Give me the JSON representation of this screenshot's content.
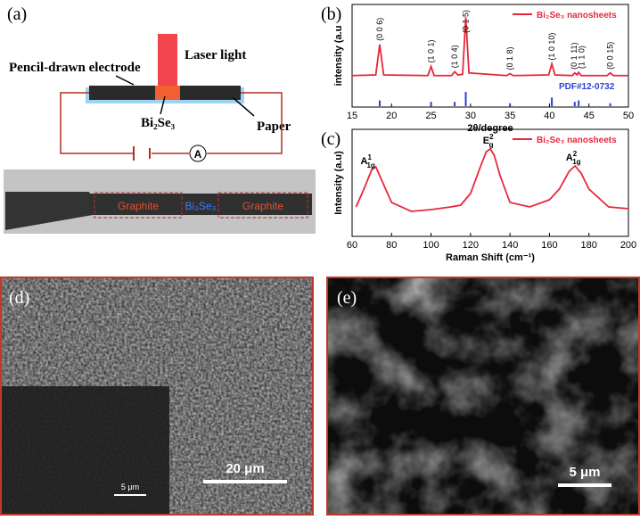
{
  "panel_a": {
    "label": "(a)",
    "laser": "Laser light",
    "electrode": "Pencil-drawn electrode",
    "material": "Bi₂Se₃",
    "paper": "Paper",
    "meter": "A",
    "photo": {
      "left": "Graphite",
      "middle": "Bi₂Se₃",
      "right": "Graphite"
    }
  },
  "chart_data": [
    {
      "type": "line",
      "panel": "(b)",
      "xlabel": "2θ/degree",
      "ylabel": "intensity (a.u",
      "color": "#e8283a",
      "x": [
        15,
        18.0,
        18.5,
        19.0,
        24.6,
        25.0,
        25.4,
        27.6,
        28.0,
        28.4,
        29.0,
        29.4,
        29.8,
        34.6,
        35.0,
        35.4,
        39.9,
        40.3,
        40.7,
        42.9,
        43.2,
        43.5,
        43.7,
        44.0,
        47.3,
        47.7,
        48.1,
        50
      ],
      "series": [
        {
          "name": "Bi₂Se₃ nanosheets",
          "color": "#e8283a",
          "values": [
            10,
            11,
            58,
            11,
            10,
            24,
            10,
            10,
            16,
            11,
            12,
            100,
            14,
            10,
            13,
            10,
            11,
            28,
            11,
            10,
            14,
            11,
            15,
            10,
            10,
            14,
            10,
            10
          ]
        }
      ],
      "xlim": [
        15,
        50
      ],
      "xticks": [
        15,
        20,
        25,
        30,
        35,
        40,
        45,
        50
      ],
      "ylim": [
        0,
        110
      ],
      "annotations": [
        {
          "text": "(0 0 6)",
          "x": 18.5
        },
        {
          "text": "(1 0 1)",
          "x": 25
        },
        {
          "text": "(1 0 4)",
          "x": 28
        },
        {
          "text": "(0 1 5)",
          "x": 29.4
        },
        {
          "text": "(0 1 8)",
          "x": 35
        },
        {
          "text": "(1 0 10)",
          "x": 40.3
        },
        {
          "text": "(0 1 11)",
          "x": 43.1
        },
        {
          "text": "(1 1 0)",
          "x": 44.1
        },
        {
          "text": "(0 0 15)",
          "x": 47.7
        }
      ],
      "reference": {
        "label": "PDF#12-0732",
        "color": "#2a3fd6",
        "x": [
          18.5,
          25,
          28,
          29.4,
          35,
          40.3,
          43.2,
          43.7,
          47.7
        ],
        "values": [
          40,
          30,
          30,
          100,
          20,
          60,
          30,
          40,
          20
        ]
      }
    },
    {
      "type": "line",
      "panel": "(c)",
      "xlabel": "Raman Shift (cm⁻¹)",
      "ylabel": "Intensity (a.u)",
      "color": "#e8283a",
      "x": [
        62,
        66,
        70,
        72,
        76,
        80,
        90,
        100,
        110,
        115,
        120,
        125,
        128,
        130,
        132,
        135,
        140,
        150,
        160,
        165,
        170,
        173,
        176,
        180,
        190,
        200
      ],
      "series": [
        {
          "name": "Bi₂Se₃ nanosheets",
          "color": "#e8283a",
          "values": [
            30,
            50,
            72,
            75,
            55,
            35,
            25,
            27,
            30,
            32,
            45,
            75,
            92,
            95,
            88,
            65,
            35,
            30,
            38,
            50,
            70,
            76,
            68,
            50,
            30,
            28
          ]
        }
      ],
      "xlim": [
        60,
        200
      ],
      "xticks": [
        60,
        80,
        100,
        120,
        140,
        160,
        180,
        200
      ],
      "ylim": [
        0,
        110
      ],
      "annotations": [
        {
          "base": "A",
          "sub": "1g",
          "sup": "1",
          "x": 67
        },
        {
          "base": "E",
          "sub": "g",
          "sup": "2",
          "x": 129
        },
        {
          "base": "A",
          "sub": "1g",
          "sup": "2",
          "x": 171
        }
      ]
    }
  ],
  "panel_d": {
    "label": "(d)",
    "scale": "20 μm",
    "inset_scale": "5 μm"
  },
  "panel_e": {
    "label": "(e)",
    "scale": "5 μm"
  }
}
